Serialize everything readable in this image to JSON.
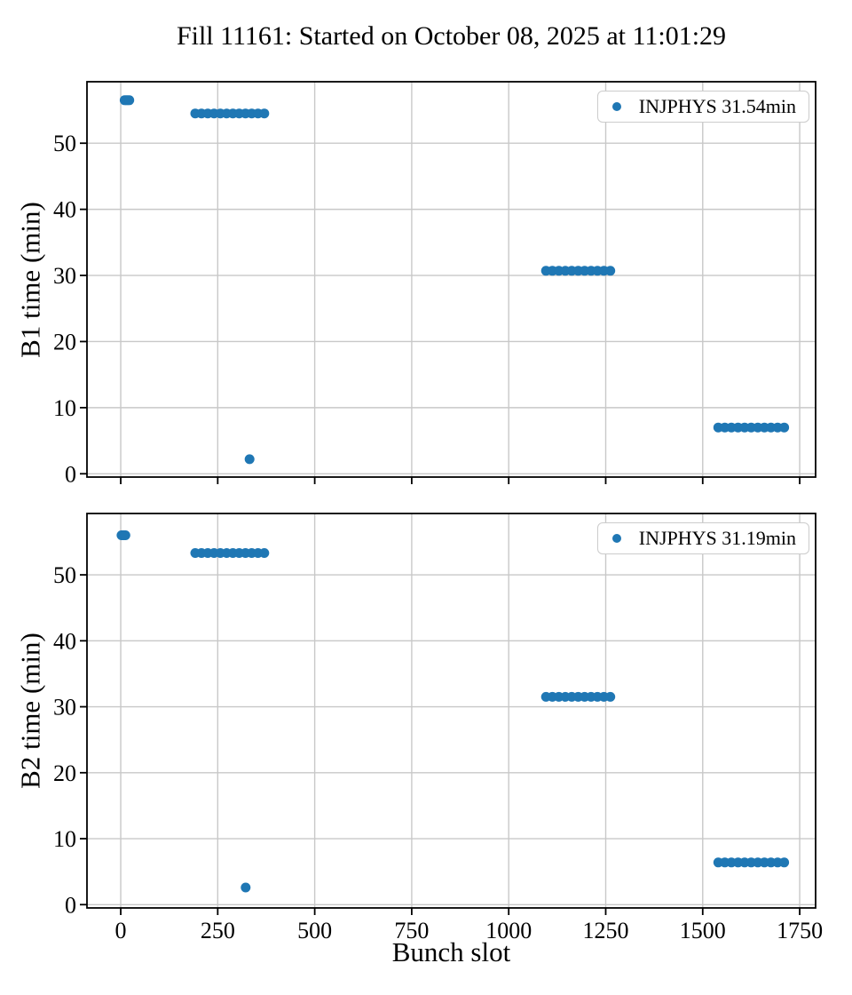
{
  "title": "Fill 11161: Started on October 08, 2025 at 11:01:29",
  "colors": {
    "marker": "#1f77b4",
    "grid": "#c8c8c8",
    "spine": "#000000",
    "text": "#000000",
    "legend_border": "#cccccc",
    "background": "#ffffff"
  },
  "chart_data": [
    {
      "type": "scatter",
      "ylabel": "B1 time (min)",
      "xlabel": "",
      "legend_label": "INJPHYS 31.54min",
      "legend_position": "upper right",
      "grid": true,
      "marker_color": "#1f77b4",
      "xlim": [
        -87,
        1791
      ],
      "ylim": [
        -0.5,
        59.3
      ],
      "xticks": [
        0,
        250,
        500,
        750,
        1000,
        1250,
        1500,
        1750
      ],
      "yticks": [
        0,
        10,
        20,
        30,
        40,
        50
      ],
      "show_xticklabels": false,
      "clusters": [
        {
          "x_start": 10,
          "x_end": 22,
          "points": 4,
          "y": 56.5
        },
        {
          "x_start": 192,
          "x_end": 370,
          "points": 12,
          "y": 54.5
        },
        {
          "x_start": 332,
          "x_end": 332,
          "points": 1,
          "y": 2.2
        },
        {
          "x_start": 1096,
          "x_end": 1262,
          "points": 11,
          "y": 30.7
        },
        {
          "x_start": 1540,
          "x_end": 1710,
          "points": 11,
          "y": 7.0
        }
      ]
    },
    {
      "type": "scatter",
      "ylabel": "B2 time (min)",
      "xlabel": "Bunch slot",
      "legend_label": "INJPHYS 31.19min",
      "legend_position": "upper right",
      "grid": true,
      "marker_color": "#1f77b4",
      "xlim": [
        -87,
        1791
      ],
      "ylim": [
        -0.5,
        59.3
      ],
      "xticks": [
        0,
        250,
        500,
        750,
        1000,
        1250,
        1500,
        1750
      ],
      "yticks": [
        0,
        10,
        20,
        30,
        40,
        50
      ],
      "show_xticklabels": true,
      "clusters": [
        {
          "x_start": 2,
          "x_end": 12,
          "points": 4,
          "y": 56.0
        },
        {
          "x_start": 192,
          "x_end": 370,
          "points": 12,
          "y": 53.3
        },
        {
          "x_start": 322,
          "x_end": 322,
          "points": 1,
          "y": 2.6
        },
        {
          "x_start": 1096,
          "x_end": 1262,
          "points": 11,
          "y": 31.5
        },
        {
          "x_start": 1540,
          "x_end": 1710,
          "points": 11,
          "y": 6.4
        }
      ]
    }
  ]
}
